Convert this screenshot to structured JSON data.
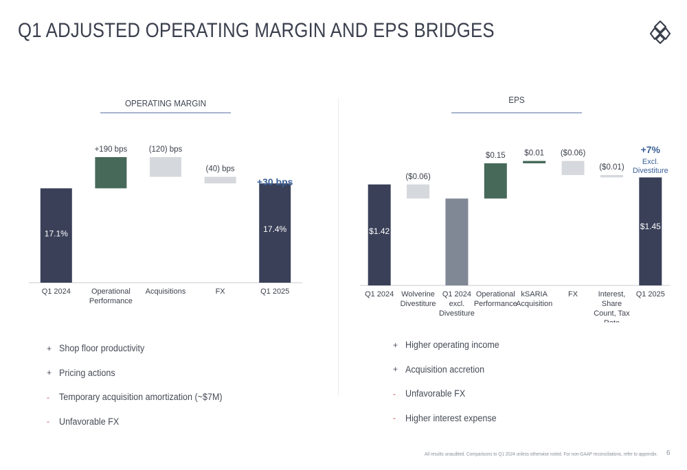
{
  "slide": {
    "title": "Q1 ADJUSTED OPERATING MARGIN AND EPS BRIDGES",
    "footer": "All results unaudited. Comparisons to Q1 2024 unless otherwise noted. For non-GAAP reconciliations, refer to appendix.",
    "page_number": "6"
  },
  "colors": {
    "navy": "#3a4058",
    "green": "#47695a",
    "light_gray": "#d5d8dc",
    "mid_gray": "#818895",
    "accent_blue": "#3a5f96",
    "rule_blue": "#5b76a3",
    "minus_red": "#c0504d"
  },
  "chart_data": [
    {
      "type": "waterfall",
      "title": "OPERATING MARGIN",
      "unit": "%",
      "categories": [
        "Q1 2024",
        "Operational Performance",
        "Acquisitions",
        "FX",
        "Q1 2025"
      ],
      "steps": [
        {
          "kind": "total",
          "value": 17.1,
          "label": "17.1%"
        },
        {
          "kind": "delta",
          "value": 1.9,
          "label": "+190 bps"
        },
        {
          "kind": "delta",
          "value": -1.2,
          "label": "(120) bps"
        },
        {
          "kind": "delta",
          "value": -0.4,
          "label": "(40) bps"
        },
        {
          "kind": "total",
          "value": 17.4,
          "label": "17.4%"
        }
      ],
      "callout": "+30 bps"
    },
    {
      "type": "waterfall",
      "title": "EPS",
      "unit": "$",
      "categories": [
        "Q1 2024",
        "Wolverine Divestiture",
        "Q1 2024 excl. Divestiture",
        "Operational Performance",
        "kSARIA Acquisition",
        "FX",
        "Interest, Share Count, Tax Rate",
        "Q1 2025"
      ],
      "steps": [
        {
          "kind": "total",
          "value": 1.42,
          "label": "$1.42"
        },
        {
          "kind": "delta",
          "value": -0.06,
          "label": "($0.06)"
        },
        {
          "kind": "subtotal",
          "value": 1.36,
          "label": ""
        },
        {
          "kind": "delta",
          "value": 0.15,
          "label": "$0.15"
        },
        {
          "kind": "delta",
          "value": 0.01,
          "label": "$0.01"
        },
        {
          "kind": "delta",
          "value": -0.06,
          "label": "($0.06)"
        },
        {
          "kind": "delta",
          "value": -0.01,
          "label": "($0.01)"
        },
        {
          "kind": "total",
          "value": 1.45,
          "label": "$1.45"
        }
      ],
      "callout": "+7%",
      "callout_sub": [
        "Excl.",
        "Divestiture"
      ]
    }
  ],
  "drivers": {
    "margin": [
      {
        "mark": "+",
        "text": "Shop floor productivity"
      },
      {
        "mark": "+",
        "text": "Pricing actions"
      },
      {
        "mark": "-",
        "text": "Temporary acquisition amortization (~$7M)"
      },
      {
        "mark": "-",
        "text": "Unfavorable FX"
      }
    ],
    "eps": [
      {
        "mark": "+",
        "text": "Higher operating income"
      },
      {
        "mark": "+",
        "text": "Acquisition accretion"
      },
      {
        "mark": "-",
        "text": "Unfavorable FX"
      },
      {
        "mark": "-",
        "text": "Higher interest expense"
      }
    ]
  }
}
